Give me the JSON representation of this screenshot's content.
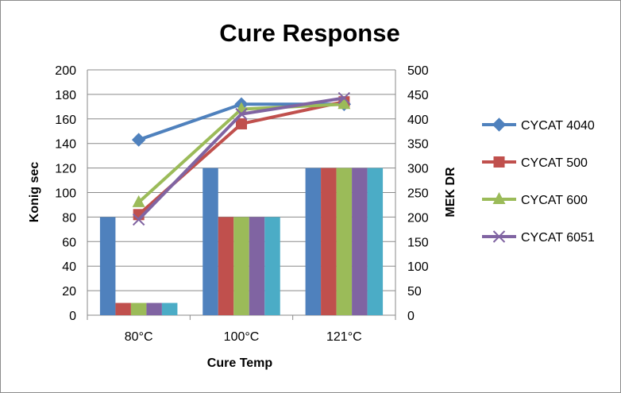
{
  "chart_data": {
    "type": "bar",
    "title": "Cure Response",
    "xlabel": "Cure Temp",
    "ylabel": "Konig sec",
    "y2label": "MEK DR",
    "categories": [
      "80°C",
      "100°C",
      "121°C"
    ],
    "ylim": [
      0,
      200
    ],
    "y2lim": [
      0,
      500
    ],
    "yticks": [
      "0",
      "20",
      "40",
      "60",
      "80",
      "100",
      "120",
      "140",
      "160",
      "180",
      "200"
    ],
    "y2ticks": [
      "0",
      "50",
      "100",
      "150",
      "200",
      "250",
      "300",
      "350",
      "400",
      "450",
      "500"
    ],
    "grid": true,
    "legend_position": "right",
    "series": [
      {
        "name": "CYCAT 4040",
        "color": "#4f81bd",
        "marker": "diamond",
        "bar_values": [
          80,
          120,
          120
        ],
        "line_values": [
          143,
          172,
          172
        ]
      },
      {
        "name": "CYCAT 500",
        "color": "#c0504d",
        "marker": "square",
        "bar_values": [
          10,
          80,
          120
        ],
        "line_values": [
          82,
          156,
          174
        ]
      },
      {
        "name": "CYCAT 600",
        "color": "#9bbb59",
        "marker": "triangle",
        "bar_values": [
          10,
          80,
          120
        ],
        "line_values": [
          92,
          168,
          172
        ]
      },
      {
        "name": "CYCAT 6051",
        "color": "#8064a2",
        "marker": "x",
        "bar_values": [
          10,
          80,
          120
        ],
        "line_values": [
          78,
          164,
          177
        ]
      },
      {
        "color": "#4bacc6",
        "bar_values": [
          10,
          80,
          120
        ]
      }
    ]
  }
}
